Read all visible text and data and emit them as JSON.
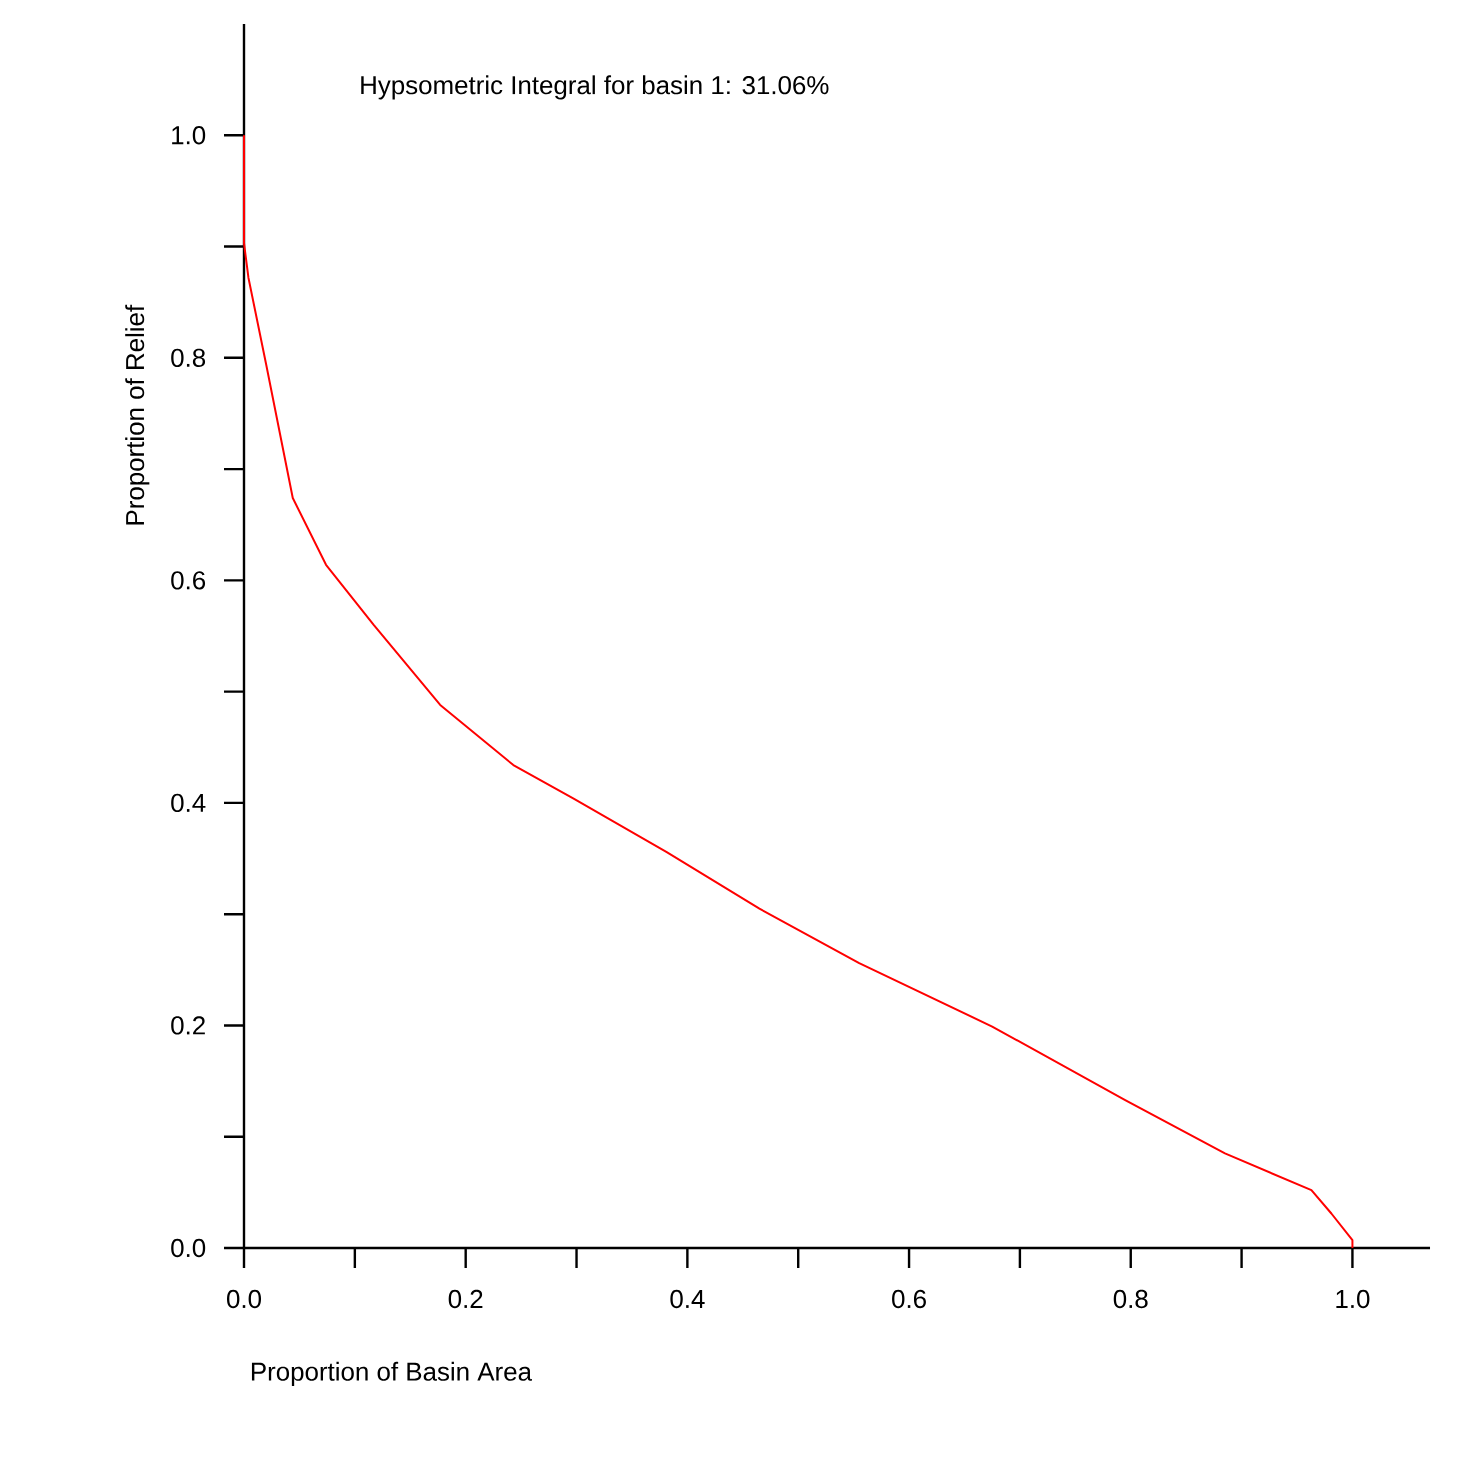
{
  "chart_data": {
    "type": "line",
    "xlabel": "Proportion of Basin Area",
    "ylabel": "Proportion of Relief",
    "annotations": [
      "Hypsometric Integral for basin 1: 31.06%"
    ],
    "series": [
      {
        "color": "#ff0000",
        "x": [
          0.0,
          0.0,
          0.004,
          0.02,
          0.044,
          0.074,
          0.117,
          0.177,
          0.243,
          0.297,
          0.381,
          0.465,
          0.555,
          0.675,
          0.795,
          0.885,
          0.963,
          0.981,
          1.0,
          1.0
        ],
        "values": [
          1.0,
          0.903,
          0.872,
          0.794,
          0.674,
          0.614,
          0.56,
          0.488,
          0.434,
          0.404,
          0.356,
          0.305,
          0.256,
          0.199,
          0.133,
          0.085,
          0.052,
          0.031,
          0.007,
          0.0
        ]
      }
    ],
    "xlim": [
      0,
      1.07
    ],
    "ylim": [
      0,
      1.1
    ],
    "xticks": [
      {
        "value": 0,
        "label": "0.0"
      },
      {
        "value": 0.1,
        "label": null
      },
      0.2,
      {
        "value": 0.3,
        "label": null
      },
      0.4,
      {
        "value": 0.5,
        "label": null
      },
      0.6,
      {
        "value": 0.7,
        "label": null
      },
      0.8,
      {
        "value": 0.9,
        "label": null
      },
      {
        "value": 1,
        "label": "1.0"
      }
    ],
    "yticks": [
      {
        "value": 0,
        "label": "0.0"
      },
      {
        "value": 0.1,
        "label": null
      },
      0.2,
      {
        "value": 0.3,
        "label": null
      },
      0.4,
      {
        "value": 0.5,
        "label": null
      },
      0.6,
      {
        "value": 0.7,
        "label": null
      },
      0.8,
      {
        "value": 0.9,
        "label": null
      },
      {
        "value": 1,
        "label": "1.0"
      }
    ],
    "grid": false,
    "marker": "none",
    "line_style": "solid"
  }
}
